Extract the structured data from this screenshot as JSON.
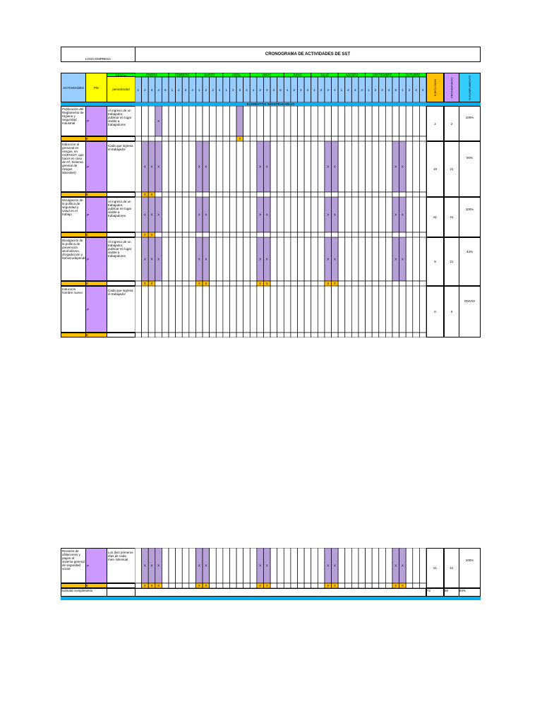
{
  "header": {
    "logo_label": "LOGO EMPRESA",
    "title": "CRONOGRAMA DE ACTIVIDADES DE SST"
  },
  "table_header": {
    "actividades": "ACTIVIDADES",
    "ps": "P/E",
    "fecha": "FECHA",
    "periodicidad": "periodicidad",
    "months": [
      "ENERO",
      "FEBRERO",
      "MARZO",
      "ABRIL",
      "MAYO",
      "JUNIO",
      "JULIO",
      "AGOSTO",
      "SEPTIEMBRE",
      "OCTUBRE"
    ],
    "weeks_label": [
      "1",
      "2",
      "3",
      "4",
      "5"
    ],
    "ejecutado": "EJECUTADO",
    "programado": "PROGRAMADO",
    "cumplimiento": "% CUMPLIMIENTO",
    "section_bar": "ELEMENTOS INDISPENSABLES"
  },
  "rows": [
    {
      "activity": "Publicación del Reglamento de Higiene y Seguridad Industrial",
      "pe": "P",
      "periodicidad": "Al ingreso de un trabajador, publicar en lugar visible a trabajadores",
      "ejecutado": "2",
      "programado": "2",
      "cumplimiento": "100%"
    },
    {
      "activity": "Inducción al personal en riesgos, en COPASST, que hacer en caso de AT, Sistema general de riesgos laborales)",
      "pe": "P",
      "periodicidad": "Cada que ingresa el trabajador",
      "ejecutado": "19",
      "programado": "21",
      "cumplimiento": "90%"
    },
    {
      "activity": "Divulgación de la política de seguridad y salud en el trabajo",
      "pe": "P",
      "periodicidad": "Al ingreso de un trabajador, publicar en lugar visible a trabajadores",
      "ejecutado": "21",
      "programado": "21",
      "cumplimiento": "100%"
    },
    {
      "activity": "Divulgación de la política de prevención alcoholismo, drogadicción y farmacodependencia",
      "pe": "P",
      "periodicidad": "Al ingreso de un trabajador, publicar en lugar visible a trabajadores",
      "ejecutado": "9",
      "programado": "21",
      "cumplimiento": "43%"
    },
    {
      "activity": "Inducción hombre nuevo",
      "pe": "P",
      "periodicidad": "Cada que ingresa el trabajador",
      "ejecutado": "0",
      "programado": "0",
      "cumplimiento": "#DIV/0!"
    }
  ],
  "bottom_row": {
    "activity": "Revisión de afiliaciones y pagos al sistema general de seguridad social",
    "pe": "P",
    "periodicidad": "Los diez primeros días de cada mes- Mensual",
    "ejecutado": "21",
    "programado": "21",
    "cumplimiento": "100%"
  },
  "total_row": {
    "label": "Subtotal cumplimiento",
    "ejecutado": "72",
    "programado": "86",
    "cumplimiento": "84%"
  },
  "colors": {
    "yellow": "#ffff00",
    "green": "#00ff00",
    "light_blue": "#99ccff",
    "cyan": "#00b0f0",
    "orange": "#ffc000",
    "purple": "#b7a0d8",
    "lilac": "#cc99ff"
  }
}
